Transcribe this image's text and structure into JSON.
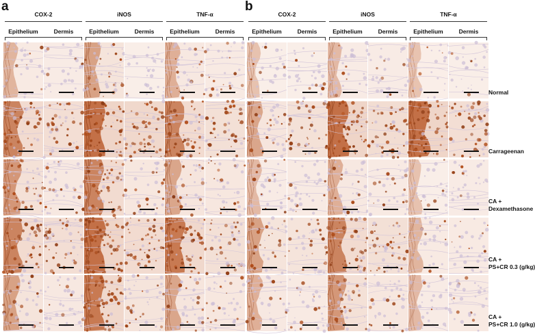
{
  "panels": [
    {
      "letter": "a",
      "markers": [
        "COX-2",
        "iNOS",
        "TNF-α"
      ],
      "subcolumns": [
        "Epithelium",
        "Dermis"
      ]
    },
    {
      "letter": "b",
      "markers": [
        "COX-2",
        "iNOS",
        "TNF-α"
      ],
      "subcolumns": [
        "Epithelium",
        "Dermis"
      ]
    }
  ],
  "rows": [
    {
      "label_line1": "Normal",
      "label_line2": ""
    },
    {
      "label_line1": "Carrageenan",
      "label_line2": ""
    },
    {
      "label_line1": "CA +",
      "label_line2": "Dexamethasone"
    },
    {
      "label_line1": "CA +",
      "label_line2": "PS+CR 0.3 (g/kg)"
    },
    {
      "label_line1": "CA +",
      "label_line2": "PS+CR 1.0 (g/kg)"
    }
  ],
  "intensity": {
    "a": [
      [
        0.25,
        0.2,
        0.45,
        0.12,
        0.3,
        0.25
      ],
      [
        0.75,
        0.65,
        0.95,
        0.85,
        0.75,
        0.6
      ],
      [
        0.55,
        0.3,
        0.75,
        0.35,
        0.4,
        0.35
      ],
      [
        0.75,
        0.65,
        0.95,
        0.75,
        0.85,
        0.6
      ],
      [
        0.45,
        0.3,
        0.85,
        0.45,
        0.4,
        0.35
      ]
    ],
    "b": [
      [
        0.12,
        0.12,
        0.2,
        0.2,
        0.1,
        0.12
      ],
      [
        0.4,
        0.55,
        0.95,
        0.7,
        0.95,
        0.65
      ],
      [
        0.2,
        0.25,
        0.3,
        0.25,
        0.12,
        0.2
      ],
      [
        0.45,
        0.45,
        0.75,
        0.6,
        0.25,
        0.25
      ],
      [
        0.3,
        0.25,
        0.55,
        0.35,
        0.2,
        0.25
      ]
    ]
  },
  "colors": {
    "stain": "#b5501c",
    "background": "#fbf1ec",
    "counterstain": "#b8a8cc"
  }
}
